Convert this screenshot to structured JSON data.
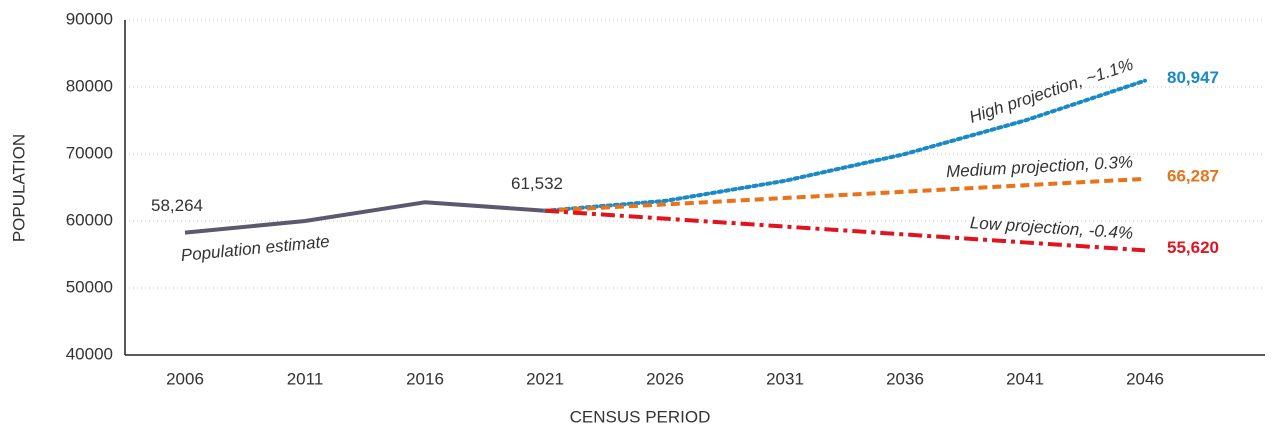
{
  "chart_data": {
    "type": "line",
    "xlabel": "CENSUS PERIOD",
    "ylabel": "POPULATION",
    "x": [
      2006,
      2011,
      2016,
      2021,
      2026,
      2031,
      2036,
      2041,
      2046
    ],
    "xlim": [
      2003.5,
      2051
    ],
    "xticks": [
      2006,
      2011,
      2016,
      2021,
      2026,
      2031,
      2036,
      2041,
      2046
    ],
    "ylim": [
      40000,
      90000
    ],
    "yticks": [
      40000,
      50000,
      60000,
      70000,
      80000,
      90000
    ],
    "grid": true,
    "series": [
      {
        "name": "Population estimate",
        "color": "#5b5870",
        "dash": "solid",
        "values": [
          58264,
          60000,
          62800,
          61532,
          null,
          null,
          null,
          null,
          null
        ],
        "value_labels": [
          "58,264",
          null,
          null,
          "61,532",
          null,
          null,
          null,
          null,
          null
        ]
      },
      {
        "name": "High projection, ~1.1%",
        "color": "#1a8ac6",
        "dash": "dotted",
        "values": [
          null,
          null,
          null,
          61532,
          63000,
          66000,
          70000,
          75000,
          80947
        ],
        "value_labels": [
          null,
          null,
          null,
          null,
          null,
          null,
          null,
          null,
          "80,947"
        ]
      },
      {
        "name": "Medium projection, 0.3%",
        "color": "#e8731a",
        "dash": "dashed",
        "values": [
          null,
          null,
          null,
          61532,
          62480,
          63430,
          64380,
          65340,
          66287
        ],
        "value_labels": [
          null,
          null,
          null,
          null,
          null,
          null,
          null,
          null,
          "66,287"
        ]
      },
      {
        "name": "Low projection, -0.4%",
        "color": "#e0141e",
        "dash": "dashdot",
        "values": [
          null,
          null,
          null,
          61532,
          60350,
          59170,
          57990,
          56800,
          55620
        ],
        "value_labels": [
          null,
          null,
          null,
          null,
          null,
          null,
          null,
          null,
          "55,620"
        ]
      }
    ]
  }
}
